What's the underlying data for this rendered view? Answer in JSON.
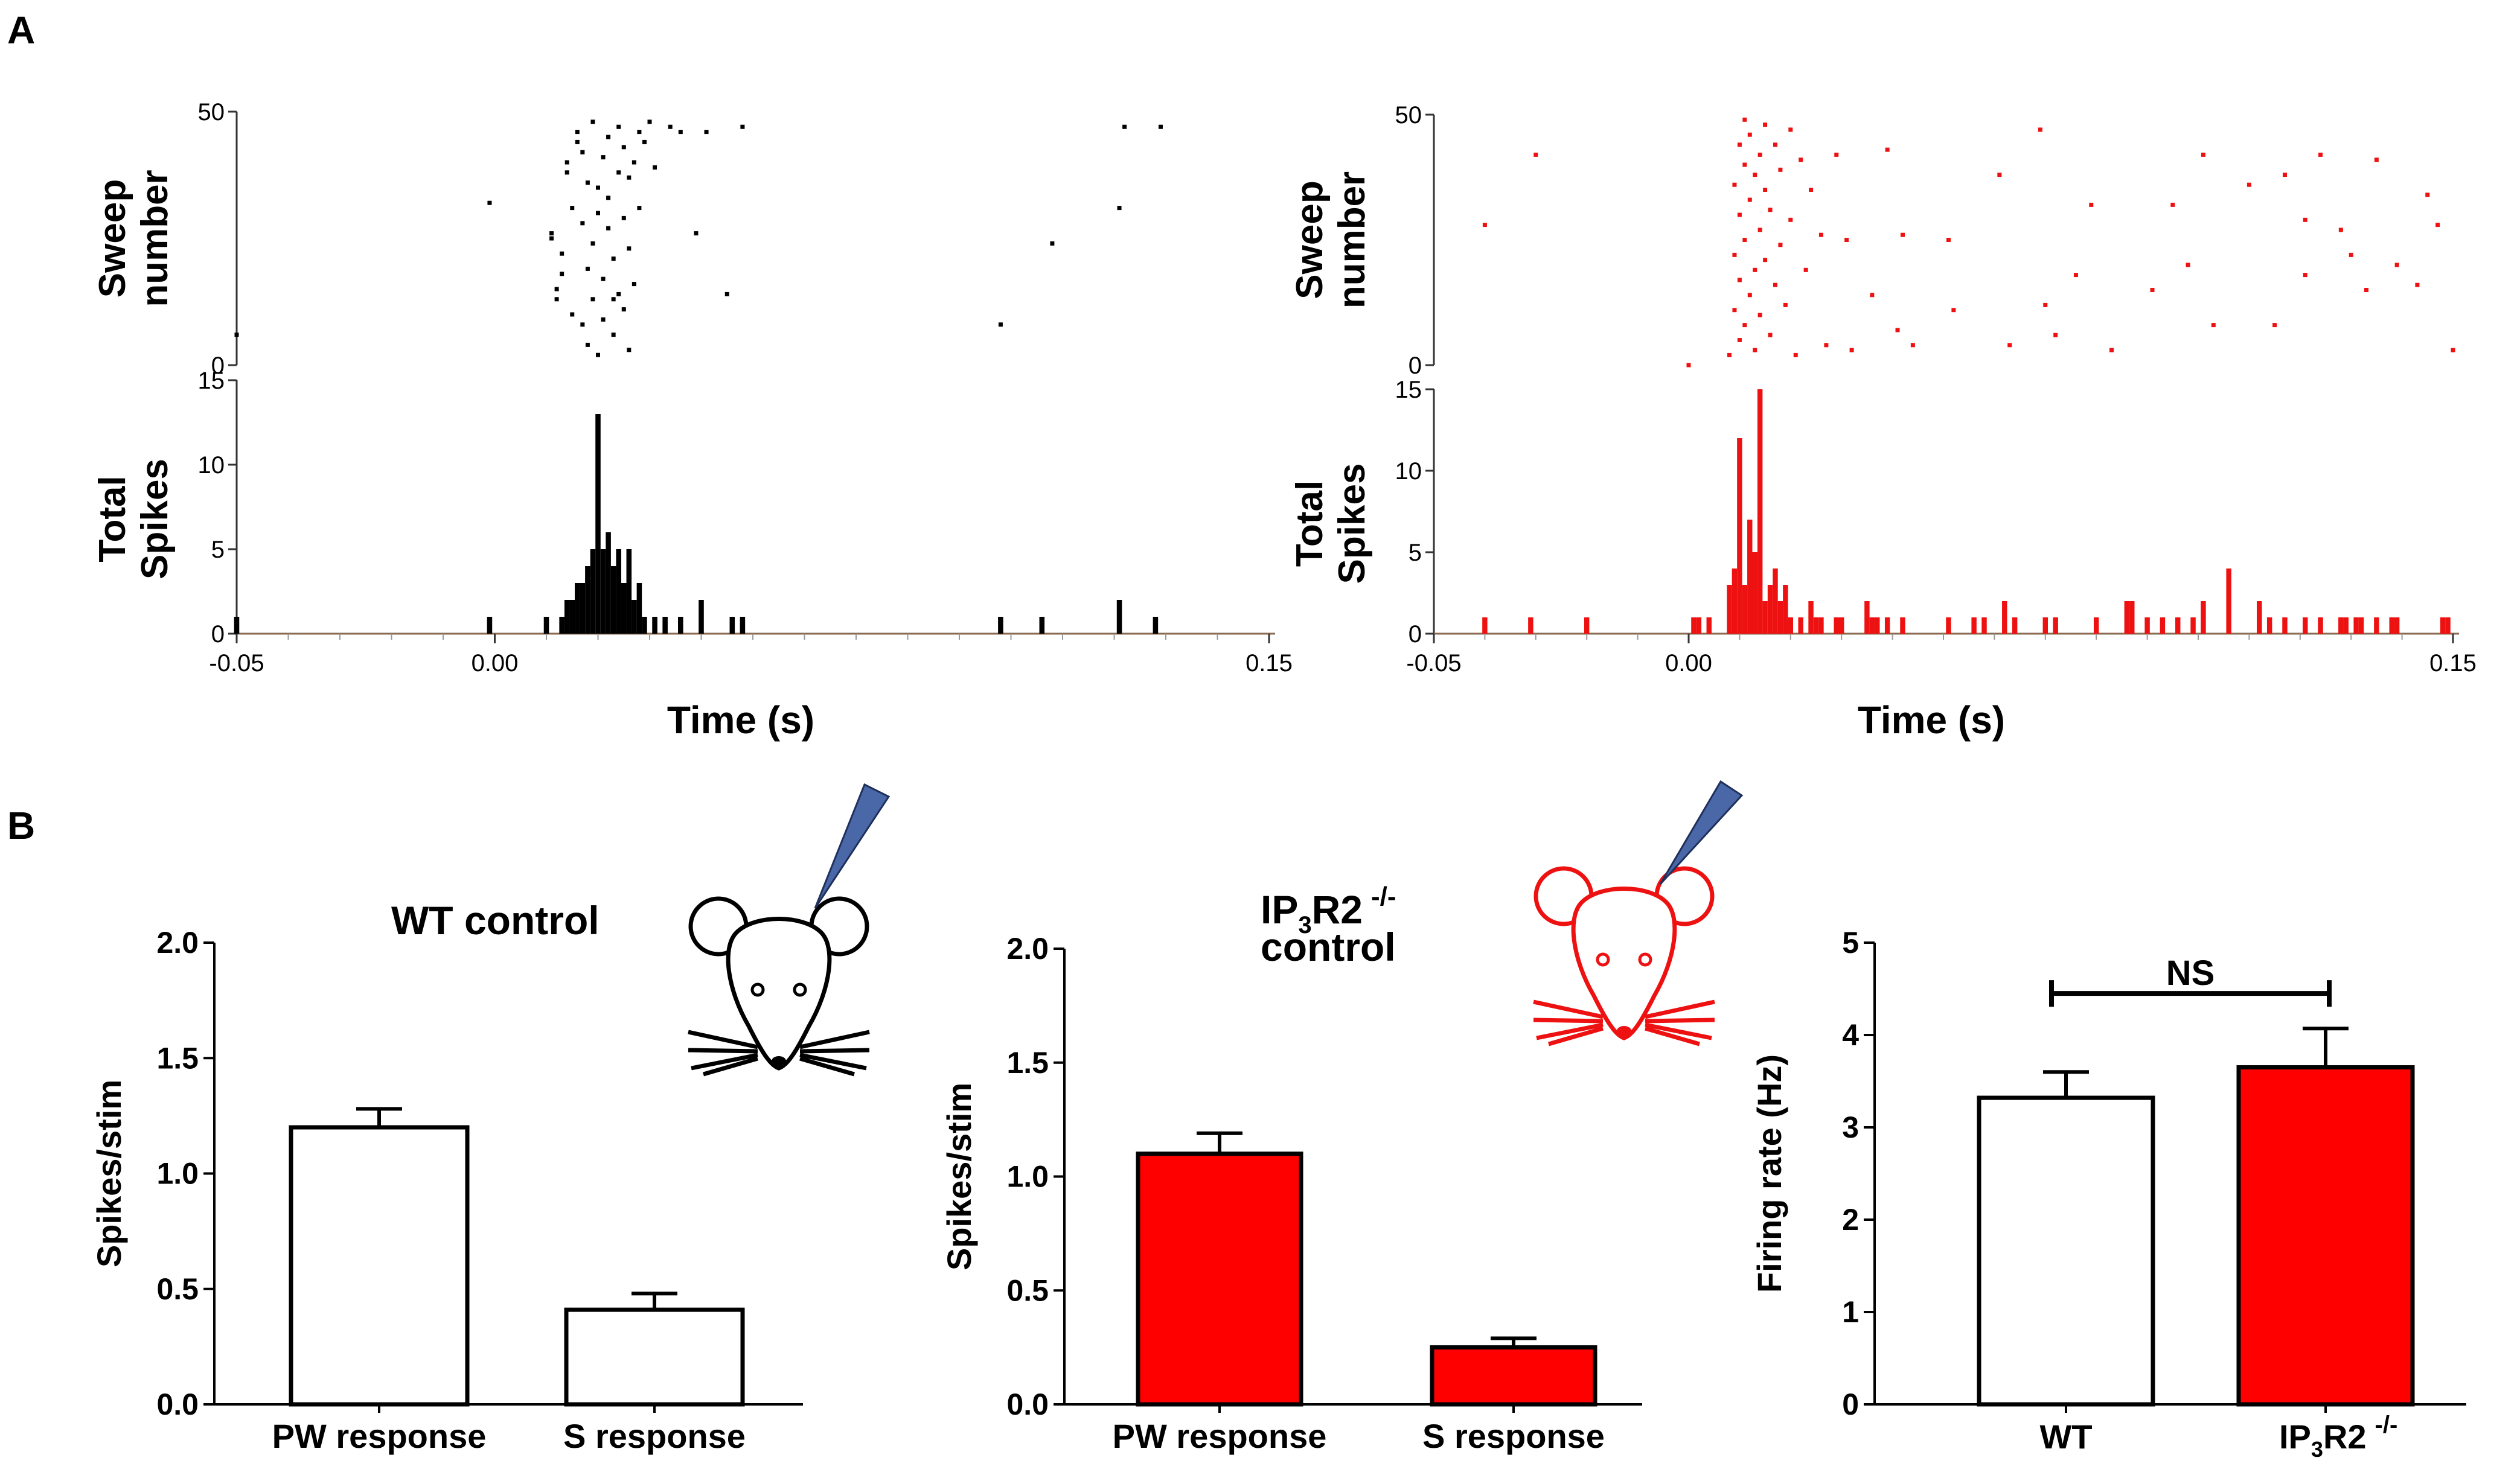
{
  "panel_labels": {
    "a": "A",
    "b": "B"
  },
  "colors": {
    "wt": "#000000",
    "ko": "#ee1111",
    "ko_bar": "#ff0000",
    "pipette": "#4a67a8",
    "axis": "#333333"
  },
  "chart_data": [
    {
      "id": "raster_wt",
      "type": "scatter",
      "color": "#000000",
      "ylabel": [
        "Sweep",
        "number"
      ],
      "ylim": [
        0,
        50
      ],
      "yticks": [
        0,
        50
      ],
      "xlim": [
        -0.05,
        0.15
      ],
      "points": [
        [
          -0.05,
          6
        ],
        [
          -0.001,
          32
        ],
        [
          0.011,
          25
        ],
        [
          0.011,
          26
        ],
        [
          0.012,
          15
        ],
        [
          0.012,
          13
        ],
        [
          0.013,
          18
        ],
        [
          0.013,
          22
        ],
        [
          0.014,
          38
        ],
        [
          0.014,
          40
        ],
        [
          0.015,
          10
        ],
        [
          0.015,
          31
        ],
        [
          0.016,
          44
        ],
        [
          0.016,
          46
        ],
        [
          0.017,
          8
        ],
        [
          0.017,
          28
        ],
        [
          0.017,
          42
        ],
        [
          0.018,
          36
        ],
        [
          0.018,
          19
        ],
        [
          0.018,
          4
        ],
        [
          0.019,
          13
        ],
        [
          0.019,
          24
        ],
        [
          0.019,
          48
        ],
        [
          0.02,
          2
        ],
        [
          0.02,
          30
        ],
        [
          0.02,
          35
        ],
        [
          0.021,
          17
        ],
        [
          0.021,
          41
        ],
        [
          0.021,
          9
        ],
        [
          0.022,
          27
        ],
        [
          0.022,
          45
        ],
        [
          0.022,
          33
        ],
        [
          0.023,
          13
        ],
        [
          0.023,
          21
        ],
        [
          0.023,
          6
        ],
        [
          0.024,
          38
        ],
        [
          0.024,
          47
        ],
        [
          0.024,
          14
        ],
        [
          0.025,
          29
        ],
        [
          0.025,
          43
        ],
        [
          0.025,
          11
        ],
        [
          0.026,
          23
        ],
        [
          0.026,
          37
        ],
        [
          0.026,
          3
        ],
        [
          0.027,
          40
        ],
        [
          0.027,
          16
        ],
        [
          0.028,
          46
        ],
        [
          0.028,
          31
        ],
        [
          0.029,
          44
        ],
        [
          0.03,
          48
        ],
        [
          0.031,
          39
        ],
        [
          0.034,
          47
        ],
        [
          0.036,
          46
        ],
        [
          0.039,
          26
        ],
        [
          0.041,
          46
        ],
        [
          0.045,
          14
        ],
        [
          0.048,
          47
        ],
        [
          0.098,
          8
        ],
        [
          0.108,
          24
        ],
        [
          0.121,
          31
        ],
        [
          0.122,
          47
        ],
        [
          0.129,
          47
        ]
      ]
    },
    {
      "id": "hist_wt",
      "type": "bar",
      "color": "#000000",
      "ylabel": [
        "Total",
        "Spikes"
      ],
      "ylim": [
        0,
        15
      ],
      "yticks": [
        0,
        5,
        10,
        15
      ],
      "xlabel": "Time (s)",
      "xlim": [
        -0.05,
        0.15
      ],
      "xticks": [
        "-0.05",
        "0.00",
        "0.15"
      ],
      "xtick_values": [
        -0.05,
        0.0,
        0.15
      ],
      "bin_width": 0.001,
      "bins": [
        [
          -0.05,
          1
        ],
        [
          -0.001,
          1
        ],
        [
          0.01,
          1
        ],
        [
          0.013,
          1
        ],
        [
          0.014,
          2
        ],
        [
          0.015,
          2
        ],
        [
          0.016,
          3
        ],
        [
          0.017,
          3
        ],
        [
          0.018,
          4
        ],
        [
          0.019,
          5
        ],
        [
          0.02,
          13
        ],
        [
          0.021,
          5
        ],
        [
          0.022,
          6
        ],
        [
          0.023,
          4
        ],
        [
          0.024,
          5
        ],
        [
          0.025,
          3
        ],
        [
          0.026,
          5
        ],
        [
          0.027,
          2
        ],
        [
          0.028,
          3
        ],
        [
          0.029,
          1
        ],
        [
          0.031,
          1
        ],
        [
          0.033,
          1
        ],
        [
          0.036,
          1
        ],
        [
          0.04,
          2
        ],
        [
          0.046,
          1
        ],
        [
          0.048,
          1
        ],
        [
          0.098,
          1
        ],
        [
          0.106,
          1
        ],
        [
          0.121,
          2
        ],
        [
          0.128,
          1
        ]
      ]
    },
    {
      "id": "raster_ko",
      "type": "scatter",
      "color": "#ee1111",
      "ylabel": [
        "Sweep",
        "number"
      ],
      "ylim": [
        0,
        50
      ],
      "yticks": [
        0,
        50
      ],
      "xlim": [
        -0.05,
        0.15
      ],
      "points": [
        [
          -0.04,
          28
        ],
        [
          -0.03,
          42
        ],
        [
          0.0,
          0
        ],
        [
          0.008,
          2
        ],
        [
          0.009,
          11
        ],
        [
          0.009,
          22
        ],
        [
          0.009,
          36
        ],
        [
          0.01,
          5
        ],
        [
          0.01,
          17
        ],
        [
          0.01,
          30
        ],
        [
          0.01,
          44
        ],
        [
          0.011,
          8
        ],
        [
          0.011,
          25
        ],
        [
          0.011,
          40
        ],
        [
          0.011,
          49
        ],
        [
          0.012,
          14
        ],
        [
          0.012,
          33
        ],
        [
          0.012,
          46
        ],
        [
          0.013,
          3
        ],
        [
          0.013,
          19
        ],
        [
          0.013,
          38
        ],
        [
          0.014,
          27
        ],
        [
          0.014,
          42
        ],
        [
          0.014,
          10
        ],
        [
          0.015,
          21
        ],
        [
          0.015,
          35
        ],
        [
          0.015,
          48
        ],
        [
          0.016,
          6
        ],
        [
          0.016,
          31
        ],
        [
          0.017,
          16
        ],
        [
          0.017,
          44
        ],
        [
          0.018,
          24
        ],
        [
          0.018,
          39
        ],
        [
          0.019,
          12
        ],
        [
          0.02,
          29
        ],
        [
          0.02,
          47
        ],
        [
          0.021,
          2
        ],
        [
          0.022,
          41
        ],
        [
          0.023,
          19
        ],
        [
          0.024,
          35
        ],
        [
          0.026,
          26
        ],
        [
          0.027,
          4
        ],
        [
          0.029,
          42
        ],
        [
          0.031,
          25
        ],
        [
          0.032,
          3
        ],
        [
          0.036,
          14
        ],
        [
          0.039,
          43
        ],
        [
          0.041,
          7
        ],
        [
          0.042,
          26
        ],
        [
          0.044,
          4
        ],
        [
          0.051,
          25
        ],
        [
          0.052,
          11
        ],
        [
          0.061,
          38
        ],
        [
          0.063,
          4
        ],
        [
          0.069,
          47
        ],
        [
          0.07,
          12
        ],
        [
          0.072,
          6
        ],
        [
          0.076,
          18
        ],
        [
          0.079,
          32
        ],
        [
          0.083,
          3
        ],
        [
          0.091,
          15
        ],
        [
          0.095,
          32
        ],
        [
          0.098,
          20
        ],
        [
          0.101,
          42
        ],
        [
          0.103,
          8
        ],
        [
          0.11,
          36
        ],
        [
          0.115,
          8
        ],
        [
          0.117,
          38
        ],
        [
          0.121,
          29
        ],
        [
          0.121,
          18
        ],
        [
          0.124,
          42
        ],
        [
          0.128,
          27
        ],
        [
          0.13,
          22
        ],
        [
          0.133,
          15
        ],
        [
          0.135,
          41
        ],
        [
          0.139,
          20
        ],
        [
          0.143,
          16
        ],
        [
          0.145,
          34
        ],
        [
          0.147,
          28
        ],
        [
          0.15,
          3
        ]
      ]
    },
    {
      "id": "hist_ko",
      "type": "bar",
      "color": "#ee1111",
      "ylabel": [
        "Total",
        "Spikes"
      ],
      "ylim": [
        0,
        15
      ],
      "yticks": [
        0,
        5,
        10,
        15
      ],
      "xlabel": "Time (s)",
      "xlim": [
        -0.05,
        0.15
      ],
      "xticks": [
        "-0.05",
        "0.00",
        "0.15"
      ],
      "xtick_values": [
        -0.05,
        0.0,
        0.15
      ],
      "bin_width": 0.001,
      "bins": [
        [
          -0.04,
          1
        ],
        [
          -0.031,
          1
        ],
        [
          -0.02,
          1
        ],
        [
          0.001,
          1
        ],
        [
          0.002,
          1
        ],
        [
          0.004,
          1
        ],
        [
          0.008,
          3
        ],
        [
          0.009,
          4
        ],
        [
          0.01,
          12
        ],
        [
          0.011,
          3
        ],
        [
          0.012,
          7
        ],
        [
          0.013,
          5
        ],
        [
          0.014,
          15
        ],
        [
          0.015,
          2
        ],
        [
          0.016,
          3
        ],
        [
          0.017,
          4
        ],
        [
          0.018,
          2
        ],
        [
          0.019,
          3
        ],
        [
          0.02,
          1
        ],
        [
          0.022,
          1
        ],
        [
          0.024,
          2
        ],
        [
          0.025,
          1
        ],
        [
          0.026,
          1
        ],
        [
          0.029,
          1
        ],
        [
          0.03,
          1
        ],
        [
          0.035,
          2
        ],
        [
          0.036,
          1
        ],
        [
          0.037,
          1
        ],
        [
          0.039,
          1
        ],
        [
          0.042,
          1
        ],
        [
          0.051,
          1
        ],
        [
          0.056,
          1
        ],
        [
          0.058,
          1
        ],
        [
          0.062,
          2
        ],
        [
          0.064,
          1
        ],
        [
          0.07,
          1
        ],
        [
          0.072,
          1
        ],
        [
          0.08,
          1
        ],
        [
          0.086,
          2
        ],
        [
          0.087,
          2
        ],
        [
          0.09,
          1
        ],
        [
          0.093,
          1
        ],
        [
          0.096,
          1
        ],
        [
          0.099,
          1
        ],
        [
          0.101,
          2
        ],
        [
          0.106,
          4
        ],
        [
          0.112,
          2
        ],
        [
          0.114,
          1
        ],
        [
          0.117,
          1
        ],
        [
          0.121,
          1
        ],
        [
          0.124,
          1
        ],
        [
          0.128,
          1
        ],
        [
          0.129,
          1
        ],
        [
          0.131,
          1
        ],
        [
          0.132,
          1
        ],
        [
          0.135,
          1
        ],
        [
          0.138,
          1
        ],
        [
          0.139,
          1
        ],
        [
          0.148,
          1
        ],
        [
          0.149,
          1
        ]
      ]
    },
    {
      "id": "bar_wt",
      "type": "bar",
      "title": "WT control",
      "ylabel": "Spikes/stim",
      "ylim": [
        0,
        2.0
      ],
      "yticks": [
        "0.0",
        "0.5",
        "1.0",
        "1.5",
        "2.0"
      ],
      "ytick_values": [
        0,
        0.5,
        1.0,
        1.5,
        2.0
      ],
      "categories": [
        "PW response",
        "S response"
      ],
      "values": [
        1.2,
        0.41
      ],
      "errors": [
        0.08,
        0.07
      ],
      "fills": [
        "#ffffff",
        "#ffffff"
      ]
    },
    {
      "id": "bar_ko",
      "type": "bar",
      "title": [
        "IP",
        "3",
        "R2 ",
        "-/-"
      ],
      "title_line2": "control",
      "ylabel": "Spikes/stim",
      "ylim": [
        0,
        2.0
      ],
      "yticks": [
        "0.0",
        "0.5",
        "1.0",
        "1.5",
        "2.0"
      ],
      "ytick_values": [
        0,
        0.5,
        1.0,
        1.5,
        2.0
      ],
      "categories": [
        "PW response",
        "S response"
      ],
      "values": [
        1.1,
        0.25
      ],
      "errors": [
        0.09,
        0.04
      ],
      "fills": [
        "#ff0000",
        "#ff0000"
      ]
    },
    {
      "id": "bar_rate",
      "type": "bar",
      "ylabel": "Firing rate (Hz)",
      "ylim": [
        0,
        5
      ],
      "yticks": [
        "0",
        "1",
        "2",
        "3",
        "4",
        "5"
      ],
      "ytick_values": [
        0,
        1,
        2,
        3,
        4,
        5
      ],
      "categories": [
        "WT",
        "IP3R2 -/-"
      ],
      "values": [
        3.32,
        3.65
      ],
      "errors": [
        0.28,
        0.42
      ],
      "fills": [
        "#ffffff",
        "#ff0000"
      ],
      "significance": "NS"
    }
  ],
  "text": {
    "wt_title": "WT control",
    "ko_title_ip": "IP",
    "ko_title_sub": "3",
    "ko_title_r2": "R2",
    "ko_title_sup": "-/-",
    "ko_title_line2": "control",
    "wt_label": "WT",
    "ko_label_ip": "IP",
    "ko_label_sub": "3",
    "ko_label_r2": "R2",
    "ko_label_sup": "-/-",
    "ns": "NS"
  }
}
